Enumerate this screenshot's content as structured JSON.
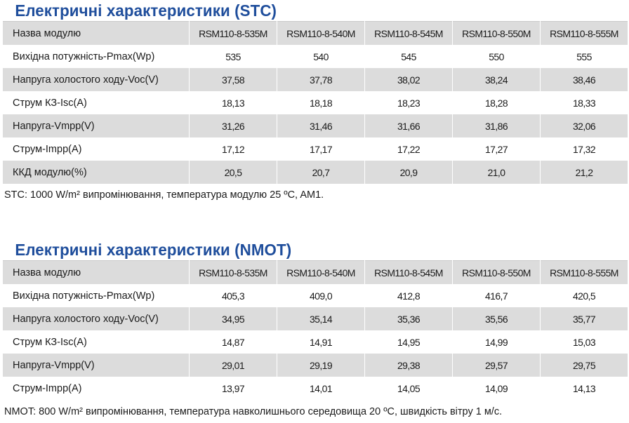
{
  "stc": {
    "title": "Електричні характеристики (STC)",
    "rows": [
      [
        "Назва модулю",
        "RSM110-8-535M",
        "RSM110-8-540M",
        "RSM110-8-545M",
        "RSM110-8-550M",
        "RSM110-8-555M"
      ],
      [
        "Вихідна потужність-Pmax(Wp)",
        "535",
        "540",
        "545",
        "550",
        "555"
      ],
      [
        "Напруга холостого ходу-Voc(V)",
        "37,58",
        "37,78",
        "38,02",
        "38,24",
        "38,46"
      ],
      [
        "Струм КЗ-Isc(A)",
        "18,13",
        "18,18",
        "18,23",
        "18,28",
        "18,33"
      ],
      [
        "Напруга-Vmpp(V)",
        "31,26",
        "31,46",
        "31,66",
        "31,86",
        "32,06"
      ],
      [
        "Струм-Impp(A)",
        "17,12",
        "17,17",
        "17,22",
        "17,27",
        "17,32"
      ],
      [
        "ККД модулю(%)",
        "20,5",
        "20,7",
        "20,9",
        "21,0",
        "21,2"
      ]
    ],
    "note": "STC: 1000 W/m² випромінювання, температура модулю 25 ºC, AM1."
  },
  "nmot": {
    "title": "Електричні характеристики (NMOT)",
    "rows": [
      [
        "Назва модулю",
        "RSM110-8-535M",
        "RSM110-8-540M",
        "RSM110-8-545M",
        "RSM110-8-550M",
        "RSM110-8-555M"
      ],
      [
        "Вихідна потужність-Pmax(Wp)",
        "405,3",
        "409,0",
        "412,8",
        "416,7",
        "420,5"
      ],
      [
        "Напруга холостого ходу-Voc(V)",
        "34,95",
        "35,14",
        "35,36",
        "35,56",
        "35,77"
      ],
      [
        "Струм КЗ-Isc(A)",
        "14,87",
        "14,91",
        "14,95",
        "14,99",
        "15,03"
      ],
      [
        "Напруга-Vmpp(V)",
        "29,01",
        "29,19",
        "29,38",
        "29,57",
        "29,75"
      ],
      [
        "Струм-Impp(A)",
        "13,97",
        "14,01",
        "14,05",
        "14,09",
        "14,13"
      ]
    ],
    "note": "NMOT: 800 W/m² випромінювання, температура навколишнього середовища 20 ºC, швидкість вітру 1 м/с."
  }
}
